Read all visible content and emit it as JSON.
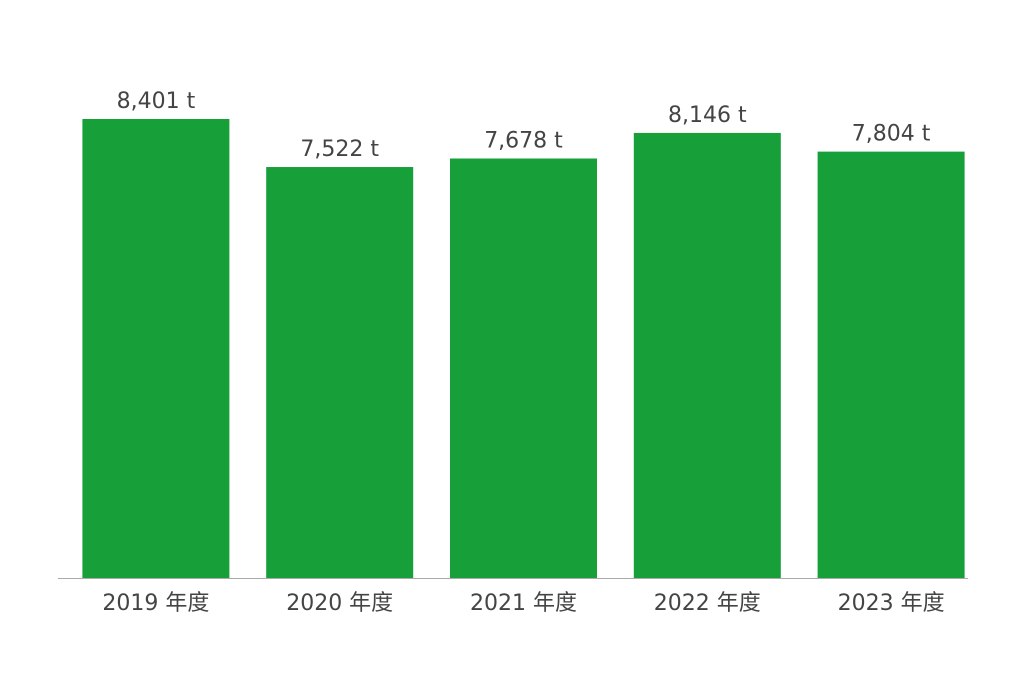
{
  "chart_data": {
    "type": "bar",
    "categories": [
      "2019 年度",
      "2020 年度",
      "2021 年度",
      "2022 年度",
      "2023 年度"
    ],
    "values": [
      8401,
      7522,
      7678,
      8146,
      7804
    ],
    "value_labels": [
      "8,401 t",
      "7,522 t",
      "7,678 t",
      "8,146 t",
      "7,804 t"
    ],
    "color": "#17a03a"
  }
}
